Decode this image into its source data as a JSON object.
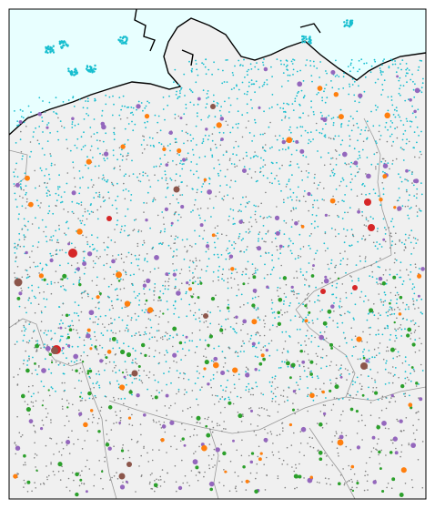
{
  "map": {
    "colors": {
      "frame": "#000000",
      "sea": "#e8ffff",
      "land": "#f0f0f0",
      "border": "#999999",
      "coast": "#000000",
      "wind": "#17becf",
      "solar": "#7f7f7f",
      "biomass": "#9467bd",
      "hydro": "#2ca02c",
      "gas": "#ff7f0e",
      "coal": "#d62728",
      "lignite": "#8c564b",
      "other": "#bcbd22"
    },
    "layers": [
      "sea",
      "land",
      "borders",
      "coastline",
      "generators"
    ]
  }
}
